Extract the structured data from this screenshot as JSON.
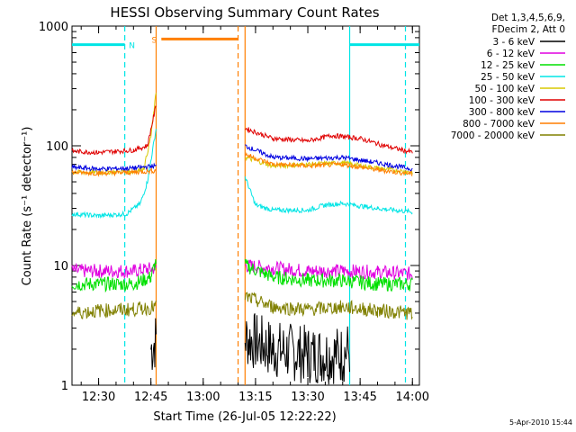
{
  "chart_data": {
    "type": "line",
    "title": "HESSI Observing Summary Count Rates",
    "xlabel": "Start Time (26-Jul-05 12:22:22)",
    "ylabel": "Count Rate (s⁻¹ detector⁻¹)",
    "y_scale": "log",
    "xlim": [
      "12:22:22",
      "14:02:00"
    ],
    "ylim": [
      1,
      1000
    ],
    "x_ticks": [
      "12:30",
      "12:45",
      "13:00",
      "13:15",
      "13:30",
      "13:45",
      "14:00"
    ],
    "y_ticks": [
      "1",
      "10",
      "100",
      "1000"
    ],
    "legend_header": [
      "Det 1,3,4,5,6,9,",
      "FDecim 2, Att 0"
    ],
    "footer": "5-Apr-2010 15:44",
    "flags": [
      {
        "label": "N",
        "color": "#00e5e5",
        "level": 700,
        "spans": [
          [
            "12:22:22",
            "12:37:30"
          ],
          [
            "13:42:00",
            "14:02:00"
          ]
        ]
      },
      {
        "label": "S",
        "color": "#ff7f00",
        "level": 780,
        "spans": [
          [
            "12:48:00",
            "13:10:00"
          ]
        ]
      }
    ],
    "boundaries": [
      {
        "time": "12:37:30",
        "color": "#00e5e5",
        "style": "dashed"
      },
      {
        "time": "12:46:30",
        "color": "#ff7f00",
        "style": "solid"
      },
      {
        "time": "13:10:00",
        "color": "#ff7f00",
        "style": "dashed"
      },
      {
        "time": "13:12:00",
        "color": "#ff7f00",
        "style": "solid"
      },
      {
        "time": "13:42:00",
        "color": "#00e5e5",
        "style": "solid"
      },
      {
        "time": "13:58:00",
        "color": "#00e5e5",
        "style": "dashed"
      }
    ],
    "series": [
      {
        "name": "3 - 6 keV",
        "color": "#000000",
        "x": [
          "12:45:00",
          "12:46:30",
          "13:12:00",
          "13:20:00",
          "13:30:00",
          "13:40:00",
          "13:42:00"
        ],
        "y": [
          2,
          2.4,
          2.5,
          2,
          1.8,
          1.8,
          2
        ]
      },
      {
        "name": "6 - 12 keV",
        "color": "#e000e0",
        "x": [
          "12:22:22",
          "12:30:00",
          "12:40:00",
          "12:46:30",
          "13:12:00",
          "13:20:00",
          "13:30:00",
          "13:40:00",
          "13:50:00",
          "14:00:00"
        ],
        "y": [
          9,
          9,
          9,
          9.5,
          10,
          9.5,
          9,
          9,
          8.8,
          8.5
        ]
      },
      {
        "name": "12 - 25 keV",
        "color": "#00e000",
        "x": [
          "12:22:22",
          "12:30:00",
          "12:40:00",
          "12:45:00",
          "12:46:30",
          "13:12:00",
          "13:20:00",
          "13:30:00",
          "13:40:00",
          "13:50:00",
          "14:00:00"
        ],
        "y": [
          7,
          7,
          7,
          8,
          11,
          10,
          8,
          7.5,
          7.5,
          7,
          7
        ]
      },
      {
        "name": "25 - 50 keV",
        "color": "#00e5e5",
        "x": [
          "12:22:22",
          "12:30:00",
          "12:38:00",
          "12:42:00",
          "12:44:00",
          "12:46:30",
          "13:12:00",
          "13:15:00",
          "13:20:00",
          "13:30:00",
          "13:35:00",
          "13:40:00",
          "13:50:00",
          "14:00:00"
        ],
        "y": [
          27,
          26,
          27,
          33,
          50,
          140,
          55,
          32,
          29,
          29,
          32,
          33,
          30,
          28
        ]
      },
      {
        "name": "50 - 100 keV",
        "color": "#d8c800",
        "x": [
          "12:22:22",
          "12:30:00",
          "12:40:00",
          "12:43:00",
          "12:45:00",
          "12:46:30",
          "13:12:00",
          "13:20:00",
          "13:30:00",
          "13:40:00",
          "13:50:00",
          "14:00:00"
        ],
        "y": [
          60,
          60,
          61,
          65,
          120,
          280,
          80,
          68,
          70,
          72,
          65,
          60
        ]
      },
      {
        "name": "100 - 300 keV",
        "color": "#e00000",
        "x": [
          "12:22:22",
          "12:30:00",
          "12:40:00",
          "12:44:00",
          "12:46:30",
          "13:12:00",
          "13:20:00",
          "13:30:00",
          "13:37:00",
          "13:45:00",
          "13:52:00",
          "14:00:00"
        ],
        "y": [
          90,
          88,
          92,
          100,
          220,
          140,
          115,
          110,
          122,
          115,
          100,
          88
        ]
      },
      {
        "name": "300 - 800 keV",
        "color": "#0000e0",
        "x": [
          "12:22:22",
          "12:30:00",
          "12:40:00",
          "12:46:30",
          "13:12:00",
          "13:20:00",
          "13:30:00",
          "13:40:00",
          "13:50:00",
          "14:00:00"
        ],
        "y": [
          66,
          64,
          65,
          68,
          100,
          80,
          78,
          80,
          72,
          64
        ]
      },
      {
        "name": "800 - 7000 keV",
        "color": "#ff7f00",
        "x": [
          "12:22:22",
          "12:30:00",
          "12:40:00",
          "12:46:30",
          "13:12:00",
          "13:20:00",
          "13:30:00",
          "13:40:00",
          "13:50:00",
          "14:00:00"
        ],
        "y": [
          60,
          59,
          60,
          62,
          85,
          70,
          68,
          70,
          63,
          58
        ]
      },
      {
        "name": "7000 - 20000 keV",
        "color": "#808000",
        "x": [
          "12:22:22",
          "12:30:00",
          "12:40:00",
          "12:46:30",
          "13:12:00",
          "13:20:00",
          "13:30:00",
          "13:40:00",
          "13:50:00",
          "14:00:00"
        ],
        "y": [
          4,
          4.2,
          4.3,
          4.5,
          5.5,
          4.5,
          4.3,
          4.5,
          4.2,
          4
        ]
      }
    ]
  }
}
